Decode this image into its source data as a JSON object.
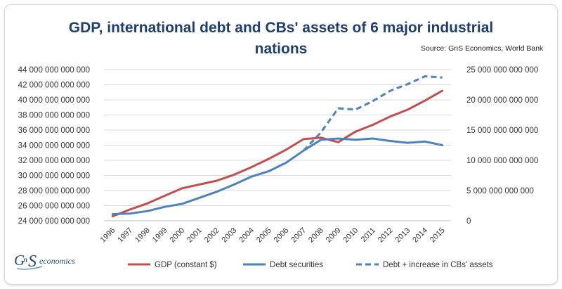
{
  "chart_data": {
    "type": "line",
    "title_line1": "GDP, international  debt and CBs' assets of 6 major industrial",
    "title_line2": "nations",
    "source": "Source: GnS Economics, World Bank",
    "categories": [
      "1996",
      "1997",
      "1998",
      "1999",
      "2000",
      "2001",
      "2002",
      "2003",
      "2004",
      "2005",
      "2006",
      "2007",
      "2008",
      "2009",
      "2010",
      "2011",
      "2012",
      "2013",
      "2014",
      "2015"
    ],
    "left_axis": {
      "ylim": [
        24000000000000,
        44000000000000
      ],
      "ticks": [
        "24 000 000 000 000",
        "26 000 000 000 000",
        "28 000 000 000 000",
        "30 000 000 000 000",
        "32 000 000 000 000",
        "34 000 000 000 000",
        "36 000 000 000 000",
        "38 000 000 000 000",
        "40 000 000 000 000",
        "42 000 000 000 000",
        "44 000 000 000 000"
      ]
    },
    "right_axis": {
      "ylim": [
        0,
        25000000000000
      ],
      "ticks": [
        "0",
        "5 000 000 000 000",
        "10 000 000 000 000",
        "15 000 000 000 000",
        "20 000 000 000 000",
        "25 000 000 000 000"
      ]
    },
    "grid": true,
    "legend_position": "bottom",
    "series": [
      {
        "name": "GDP (constant $)",
        "axis": "left",
        "color": "#c0504d",
        "style": "solid",
        "values": [
          24600000000000,
          25500000000000,
          26300000000000,
          27300000000000,
          28300000000000,
          28800000000000,
          29300000000000,
          30100000000000,
          31100000000000,
          32200000000000,
          33400000000000,
          34800000000000,
          35000000000000,
          34400000000000,
          35800000000000,
          36700000000000,
          37800000000000,
          38700000000000,
          39900000000000,
          41200000000000
        ]
      },
      {
        "name": "Debt securities",
        "axis": "right",
        "color": "#4f81bd",
        "style": "solid",
        "values": [
          1100000000000,
          1200000000000,
          1600000000000,
          2300000000000,
          2800000000000,
          3800000000000,
          4800000000000,
          6000000000000,
          7300000000000,
          8200000000000,
          9600000000000,
          11600000000000,
          13400000000000,
          13600000000000,
          13400000000000,
          13600000000000,
          13200000000000,
          12900000000000,
          13100000000000,
          12500000000000
        ]
      },
      {
        "name": "Debt + increase in CBs' assets",
        "axis": "right",
        "color": "#4f81bd",
        "style": "dashed",
        "start_index": 11,
        "values": [
          null,
          null,
          null,
          null,
          null,
          null,
          null,
          null,
          null,
          null,
          null,
          11600000000000,
          14600000000000,
          18600000000000,
          18400000000000,
          19800000000000,
          21500000000000,
          22600000000000,
          23900000000000,
          23700000000000
        ]
      }
    ]
  },
  "logo": {
    "brand": "GnS",
    "suffix": "economics"
  }
}
